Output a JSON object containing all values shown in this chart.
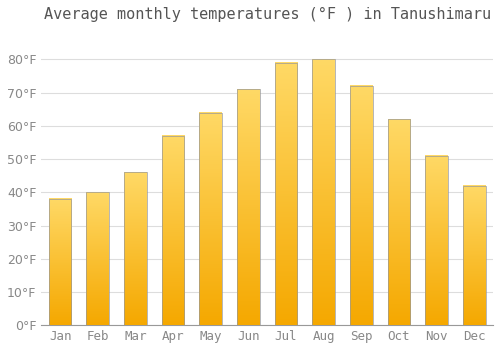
{
  "title": "Average monthly temperatures (°F ) in Tanushimaru",
  "months": [
    "Jan",
    "Feb",
    "Mar",
    "Apr",
    "May",
    "Jun",
    "Jul",
    "Aug",
    "Sep",
    "Oct",
    "Nov",
    "Dec"
  ],
  "values": [
    38,
    40,
    46,
    57,
    64,
    71,
    79,
    80,
    72,
    62,
    51,
    42
  ],
  "bar_color_bottom": "#F5A800",
  "bar_color_top": "#FFD966",
  "bar_edge_color": "#999999",
  "ylim": [
    0,
    88
  ],
  "yticks": [
    0,
    10,
    20,
    30,
    40,
    50,
    60,
    70,
    80
  ],
  "background_color": "#FFFFFF",
  "grid_color": "#DDDDDD",
  "title_fontsize": 11,
  "tick_fontsize": 9,
  "tick_color": "#888888",
  "title_color": "#555555"
}
